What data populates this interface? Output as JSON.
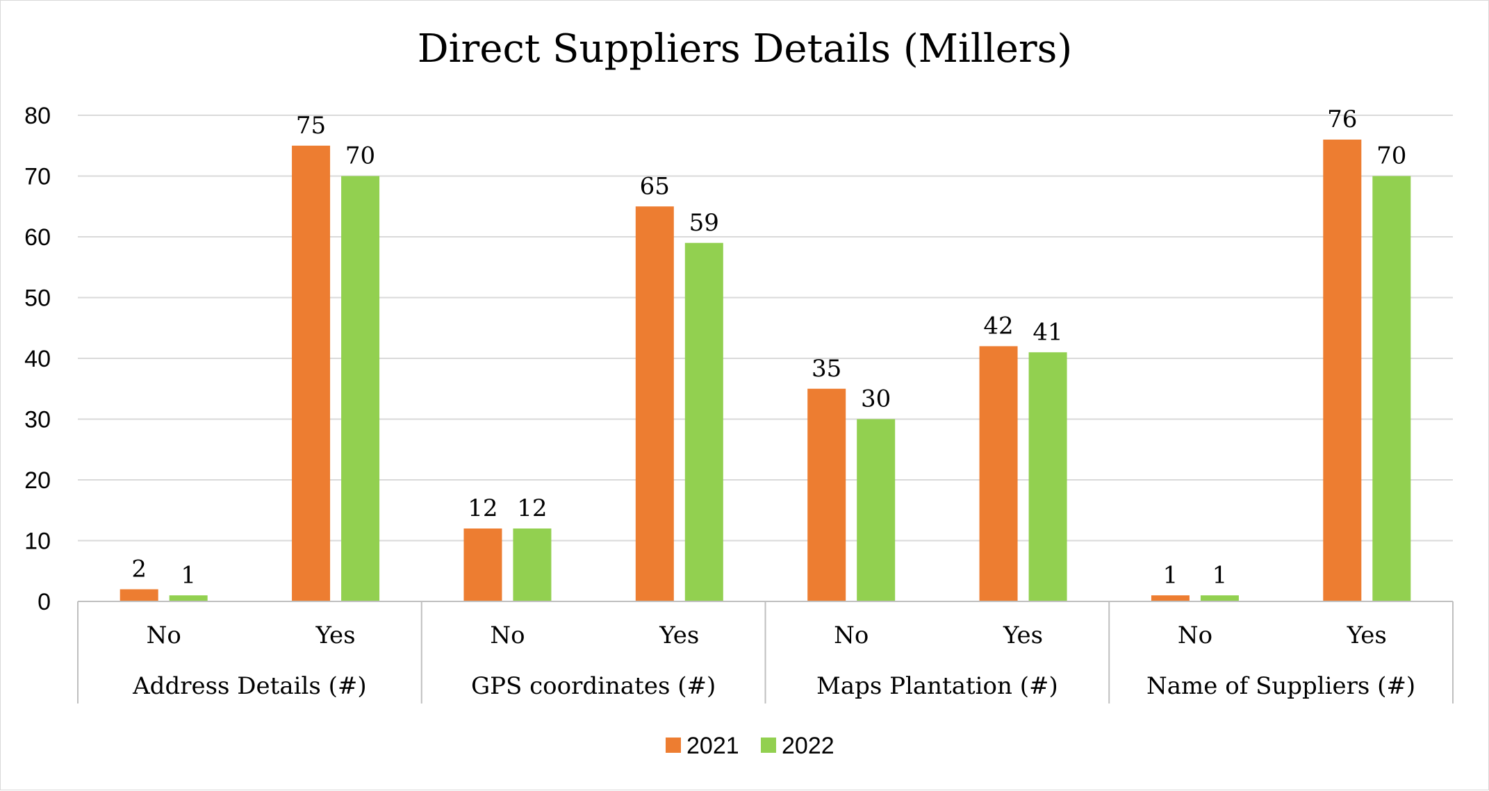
{
  "chart_data": {
    "type": "bar",
    "title": "Direct Suppliers Details (Millers)",
    "groups": [
      {
        "label": "Address Details (#)",
        "categories": [
          "No",
          "Yes"
        ]
      },
      {
        "label": "GPS coordinates (#)",
        "categories": [
          "No",
          "Yes"
        ]
      },
      {
        "label": "Maps Plantation (#)",
        "categories": [
          "No",
          "Yes"
        ]
      },
      {
        "label": "Name of Suppliers (#)",
        "categories": [
          "No",
          "Yes"
        ]
      }
    ],
    "categories": [
      "No",
      "Yes",
      "No",
      "Yes",
      "No",
      "Yes",
      "No",
      "Yes"
    ],
    "series": [
      {
        "name": "2021",
        "color": "#ED7D31",
        "values": [
          2,
          75,
          12,
          65,
          35,
          42,
          1,
          76
        ]
      },
      {
        "name": "2022",
        "color": "#92D050",
        "values": [
          1,
          70,
          12,
          59,
          30,
          41,
          1,
          70
        ]
      }
    ],
    "ylim": [
      0,
      80
    ],
    "yticks": [
      0,
      10,
      20,
      30,
      40,
      50,
      60,
      70,
      80
    ],
    "grid": true,
    "data_labels": true,
    "legend_position": "bottom"
  }
}
